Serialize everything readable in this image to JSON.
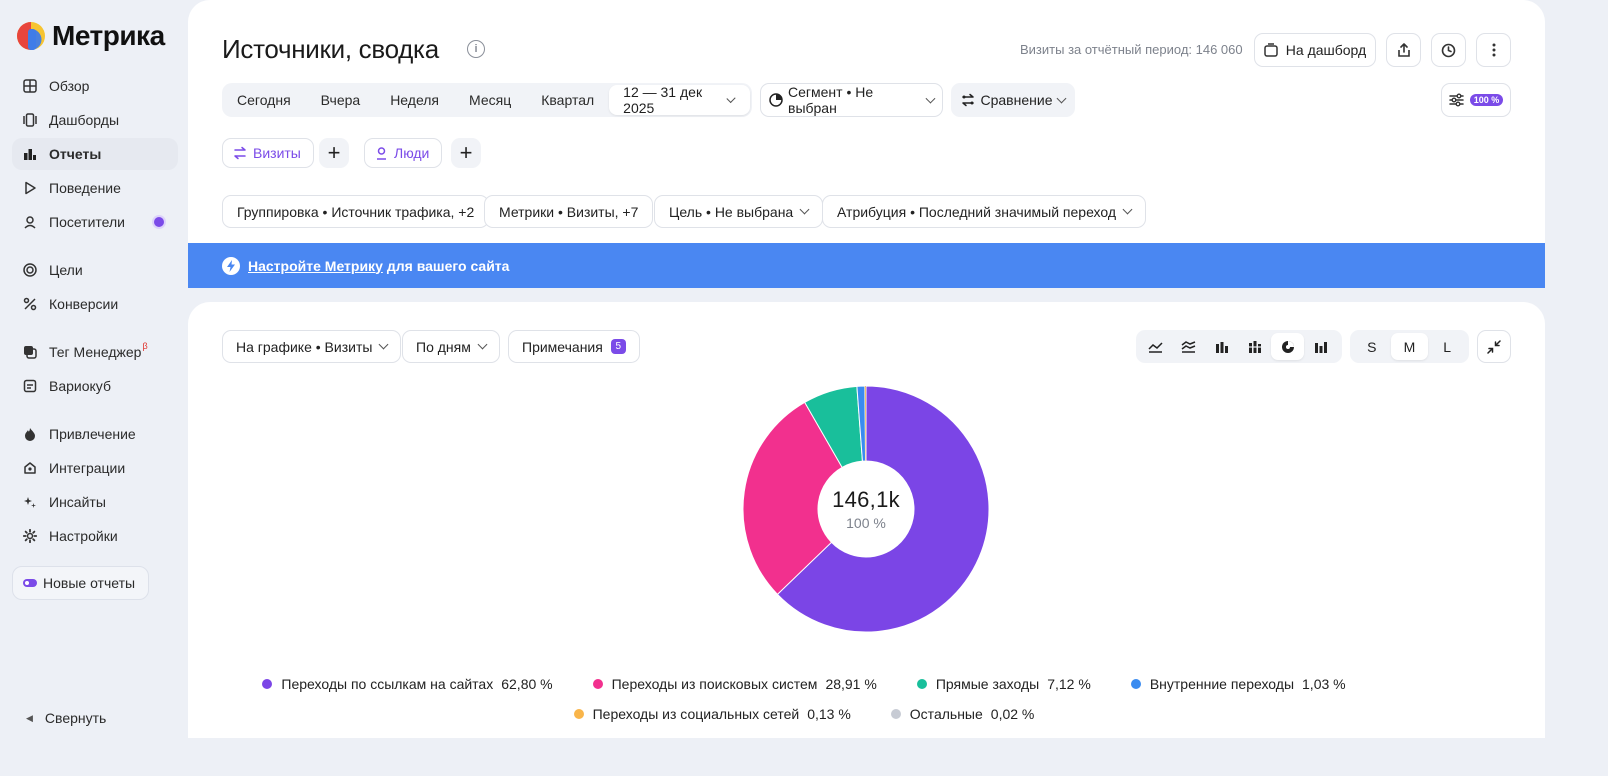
{
  "app": {
    "logo_text": "Метрика"
  },
  "sidebar": {
    "items": [
      {
        "label": "Обзор",
        "icon": "grid-icon"
      },
      {
        "label": "Дашборды",
        "icon": "dashboards-icon"
      },
      {
        "label": "Отчеты",
        "icon": "reports-icon",
        "active": true
      },
      {
        "label": "Поведение",
        "icon": "play-icon"
      },
      {
        "label": "Посетители",
        "icon": "user-icon",
        "has_dot": true
      },
      {
        "label": "Цели",
        "icon": "target-icon"
      },
      {
        "label": "Конверсии",
        "icon": "percent-icon"
      },
      {
        "label": "Тег Менеджер",
        "icon": "tag-manager-icon",
        "sup": "β"
      },
      {
        "label": "Вариокуб",
        "icon": "variocube-icon"
      },
      {
        "label": "Привлечение",
        "icon": "fire-icon"
      },
      {
        "label": "Интеграции",
        "icon": "integrations-icon"
      },
      {
        "label": "Инсайты",
        "icon": "sparkle-icon"
      },
      {
        "label": "Настройки",
        "icon": "gear-icon"
      }
    ],
    "new_reports_label": "Новые отчеты",
    "collapse_label": "Свернуть"
  },
  "header": {
    "title": "Источники, сводка",
    "visits_total": "Визиты за отчётный период: 146 060",
    "dashboard_button": "На дашборд"
  },
  "period": {
    "options": [
      "Сегодня",
      "Вчера",
      "Неделя",
      "Месяц",
      "Квартал"
    ],
    "date_range": "12 — 31 дек 2025",
    "segment": "Сегмент • Не выбран",
    "comparison": "Сравнение",
    "sampling": "100 %"
  },
  "pills": {
    "visits": "Визиты",
    "people": "Люди"
  },
  "filters": {
    "grouping": "Группировка • Источник трафика, +2",
    "metrics": "Метрики • Визиты, +7",
    "goal": "Цель • Не выбрана",
    "attribution": "Атрибуция • Последний значимый переход"
  },
  "banner": {
    "link": "Настройте Метрику",
    "text": "для вашего сайта"
  },
  "chart_controls": {
    "on_chart": "На графике • Визиты",
    "by_days": "По дням",
    "notes": "Примечания",
    "notes_count": "5",
    "sizes": [
      "S",
      "M",
      "L"
    ],
    "selected_size": "M"
  },
  "chart_data": {
    "type": "pie",
    "center_value": "146,1k",
    "center_pct": "100 %",
    "series": [
      {
        "name": "Переходы по ссылкам на сайтах",
        "value": 62.8,
        "label": "62,80 %",
        "color": "#7b45e6"
      },
      {
        "name": "Переходы из поисковых систем",
        "value": 28.91,
        "label": "28,91 %",
        "color": "#f2308e"
      },
      {
        "name": "Прямые заходы",
        "value": 7.12,
        "label": "7,12 %",
        "color": "#19bf9b"
      },
      {
        "name": "Внутренние переходы",
        "value": 1.03,
        "label": "1,03 %",
        "color": "#3a8bf0"
      },
      {
        "name": "Переходы из социальных сетей",
        "value": 0.13,
        "label": "0,13 %",
        "color": "#f9b54a"
      },
      {
        "name": "Остальные",
        "value": 0.02,
        "label": "0,02 %",
        "color": "#c7cbd4"
      }
    ]
  }
}
